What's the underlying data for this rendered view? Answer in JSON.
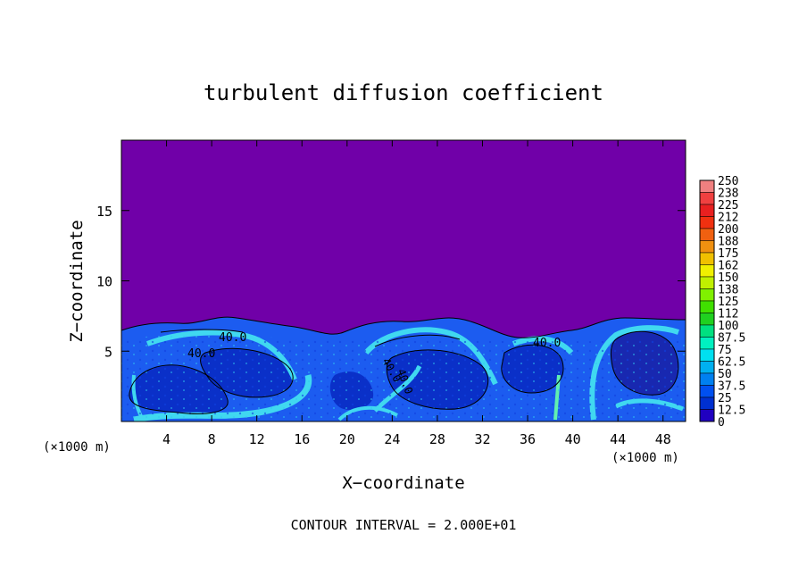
{
  "chart_data": {
    "type": "heatmap",
    "title": "turbulent diffusion coefficient",
    "xlabel": "X−coordinate",
    "ylabel": "Z−coordinate",
    "x_unit_left": "(×1000 m)",
    "x_unit_right": "(×1000 m)",
    "footer": "CONTOUR INTERVAL = 2.000E+01",
    "xlim": [
      0,
      50
    ],
    "ylim": [
      0,
      20
    ],
    "x_ticks": [
      4,
      8,
      12,
      16,
      20,
      24,
      28,
      32,
      36,
      40,
      44,
      48
    ],
    "y_ticks": [
      5,
      10,
      15
    ],
    "colorbar": {
      "labels": [
        "250",
        "238",
        "225",
        "212",
        "200",
        "188",
        "175",
        "162",
        "150",
        "138",
        "125",
        "112",
        "100",
        "87.5",
        "75",
        "62.5",
        "50",
        "37.5",
        "25",
        "12.5",
        "0"
      ],
      "colors": [
        "#f08080",
        "#f04040",
        "#e82020",
        "#f03010",
        "#f06010",
        "#f09010",
        "#f0c000",
        "#f0f000",
        "#c0f000",
        "#80f000",
        "#40e000",
        "#20d020",
        "#00e080",
        "#00f0c0",
        "#00e0f0",
        "#00b0f0",
        "#0080f0",
        "#0050f0",
        "#0030d0",
        "#2000c0",
        "#7000a8"
      ]
    },
    "contour_labels": [
      "40.0",
      "40.0",
      "40.0",
      "40.0",
      "40.0"
    ],
    "background_value": 0,
    "boundary_layer_top_km": 6.5
  }
}
